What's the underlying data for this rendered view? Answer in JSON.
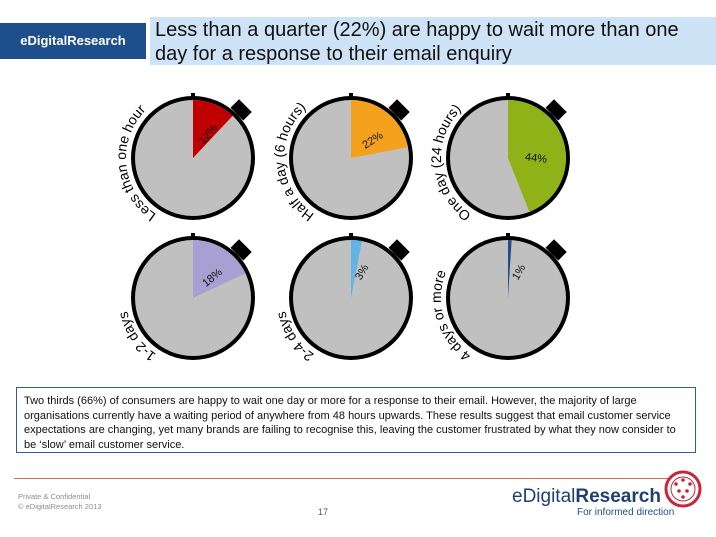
{
  "header": {
    "brand_tab": "eDigitalResearch",
    "title_line1": "Less than a quarter (22%) are happy to wait more than one",
    "title_line2": "day for a response to their email enquiry"
  },
  "chart_data": {
    "type": "pie",
    "colors": {
      "face": "#c0c0c0",
      "outline": "#000000"
    },
    "slices": [
      {
        "label": "Less than one hour",
        "value": 12,
        "value_label": "12%",
        "color": "#c00000"
      },
      {
        "label": "Half a day (6 hours)",
        "value": 22,
        "value_label": "22%",
        "color": "#f4a11d"
      },
      {
        "label": "One day (24 hours)",
        "value": 44,
        "value_label": "44%",
        "color": "#8fb219"
      },
      {
        "label": "1-2 days",
        "value": 18,
        "value_label": "18%",
        "color": "#a8a0d2"
      },
      {
        "label": "2-4 days",
        "value": 3,
        "value_label": "3%",
        "color": "#62b3e6"
      },
      {
        "label": "4 days or more",
        "value": 1,
        "value_label": "1%",
        "color": "#1f4e8c"
      }
    ]
  },
  "caption": "Two thirds (66%) of consumers are happy to wait one day or more for a response to their email. However, the majority of large organisations currently have a  waiting period of anywhere from 48 hours upwards. These results suggest that email customer service expectations are changing, yet many brands are failing to recognise this, leaving the customer frustrated by what they now consider to be ‘slow’ email customer service.",
  "footer": {
    "confidential": "Private & Confidential",
    "copyright": "© eDigitalResearch 2013",
    "page_number": "17"
  },
  "logo": {
    "word_regular": "eDigital",
    "word_bold": "Research",
    "tagline": "For informed direction",
    "icon": "circle-dots-logo-icon",
    "color": "#c8253b"
  }
}
